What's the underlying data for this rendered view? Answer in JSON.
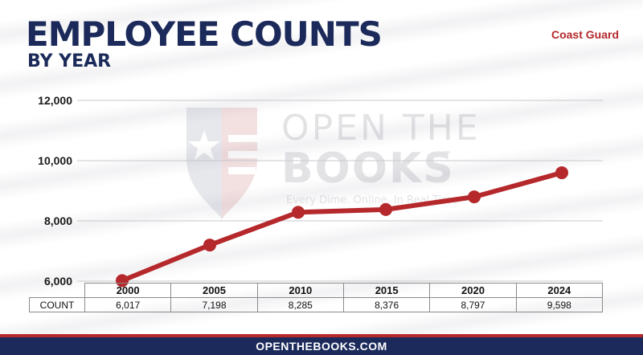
{
  "header": {
    "title": "EMPLOYEE COUNTS",
    "subtitle": "BY YEAR",
    "agency": "Coast Guard"
  },
  "watermark": {
    "line1": "OPEN THE",
    "line2": "BOOKS",
    "tagline": "Every Dime. Online. In Real Time.",
    "trademark": "™"
  },
  "table": {
    "row_label": "COUNT",
    "years": [
      "2000",
      "2005",
      "2010",
      "2015",
      "2020",
      "2024"
    ],
    "counts": [
      "6,017",
      "7,198",
      "8,285",
      "8,376",
      "8,797",
      "9,598"
    ]
  },
  "footer": {
    "site": "OPENTHEBOOKS.COM"
  },
  "colors": {
    "navy": "#1b2a5a",
    "red": "#b5282b"
  },
  "chart_data": {
    "type": "line",
    "title": "EMPLOYEE COUNTS",
    "subtitle": "BY YEAR",
    "categories": [
      "2000",
      "2005",
      "2010",
      "2015",
      "2020",
      "2024"
    ],
    "series": [
      {
        "values": [
          6017,
          7198,
          8285,
          8376,
          8797,
          9598
        ],
        "color": "#b5282b"
      }
    ],
    "ylim": [
      6000,
      12000
    ],
    "yticks": [
      6000,
      8000,
      10000,
      12000
    ],
    "ytick_labels": [
      "6,000",
      "8,000",
      "10,000",
      "12,000"
    ],
    "grid": true
  }
}
